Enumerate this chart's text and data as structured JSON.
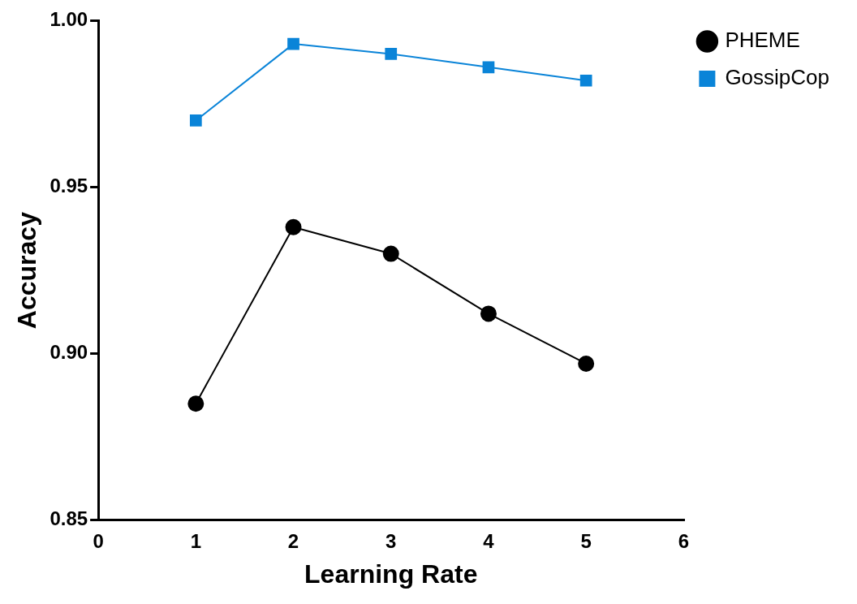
{
  "chart_data": {
    "type": "line",
    "xlabel": "Learning Rate",
    "ylabel": "Accuracy",
    "x": [
      1,
      2,
      3,
      4,
      5
    ],
    "series": [
      {
        "name": "PHEME",
        "color": "#000000",
        "marker": "circle",
        "values": [
          0.885,
          0.938,
          0.93,
          0.912,
          0.897
        ]
      },
      {
        "name": "GossipCop",
        "color": "#0a84d8",
        "marker": "square",
        "values": [
          0.97,
          0.993,
          0.99,
          0.986,
          0.982
        ]
      }
    ],
    "xlim": [
      0,
      6
    ],
    "xticks": [
      0,
      1,
      2,
      3,
      4,
      5,
      6
    ],
    "ylim": [
      0.85,
      1.0
    ],
    "yticks": [
      {
        "value": 0.85,
        "label": "0.85"
      },
      {
        "value": 0.9,
        "label": "0.90"
      },
      {
        "value": 0.95,
        "label": "0.95"
      },
      {
        "value": 1.0,
        "label": "1.00"
      }
    ],
    "grid": false,
    "legend": "top right",
    "line_style": "solid"
  }
}
